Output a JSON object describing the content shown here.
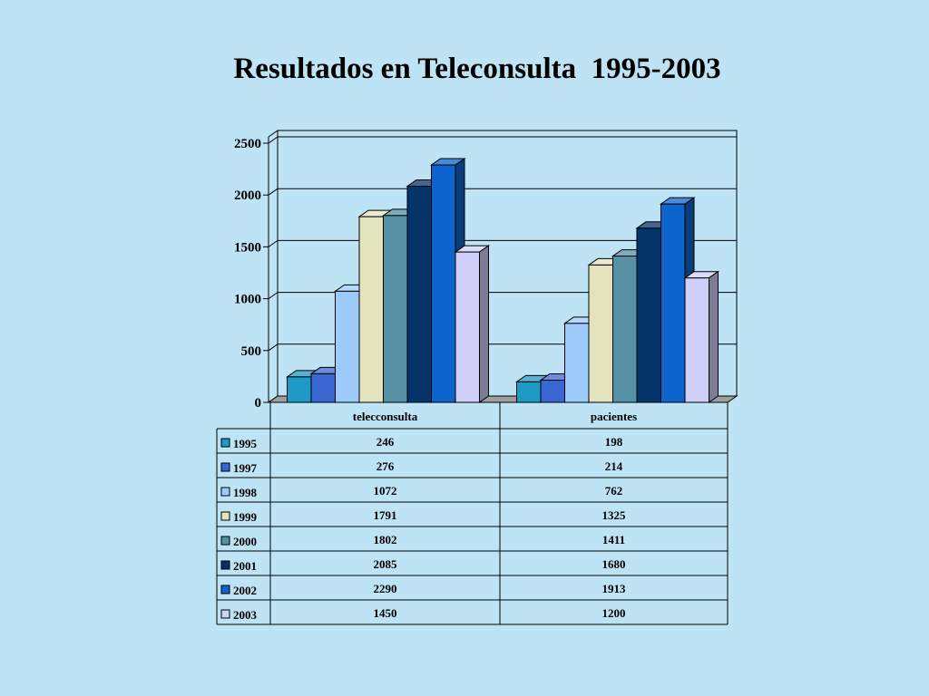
{
  "slide": {
    "title": "Resultados en Teleconsulta  1995-2003"
  },
  "chart_data": {
    "type": "bar",
    "style": "3d-clustered-with-data-table",
    "title": "Resultados en Teleconsulta  1995-2003",
    "categories": [
      "telecconsulta",
      "pacientes"
    ],
    "ylim": [
      0,
      2500
    ],
    "yticks": [
      0,
      500,
      1000,
      1500,
      2000,
      2500
    ],
    "grid": true,
    "legend": "data-table-left",
    "series": [
      {
        "name": "1995",
        "values": [
          246,
          198
        ],
        "color": "#1E9AC6"
      },
      {
        "name": "1997",
        "values": [
          276,
          214
        ],
        "color": "#3A66D2"
      },
      {
        "name": "1998",
        "values": [
          1072,
          762
        ],
        "color": "#9CCBFB"
      },
      {
        "name": "1999",
        "values": [
          1791,
          1325
        ],
        "color": "#E3E3BD"
      },
      {
        "name": "2000",
        "values": [
          1802,
          1411
        ],
        "color": "#5691A6"
      },
      {
        "name": "2001",
        "values": [
          2085,
          1680
        ],
        "color": "#05346A"
      },
      {
        "name": "2002",
        "values": [
          2290,
          1913
        ],
        "color": "#0D64CC"
      },
      {
        "name": "2003",
        "values": [
          1450,
          1200
        ],
        "color": "#CFCFFA"
      }
    ]
  }
}
